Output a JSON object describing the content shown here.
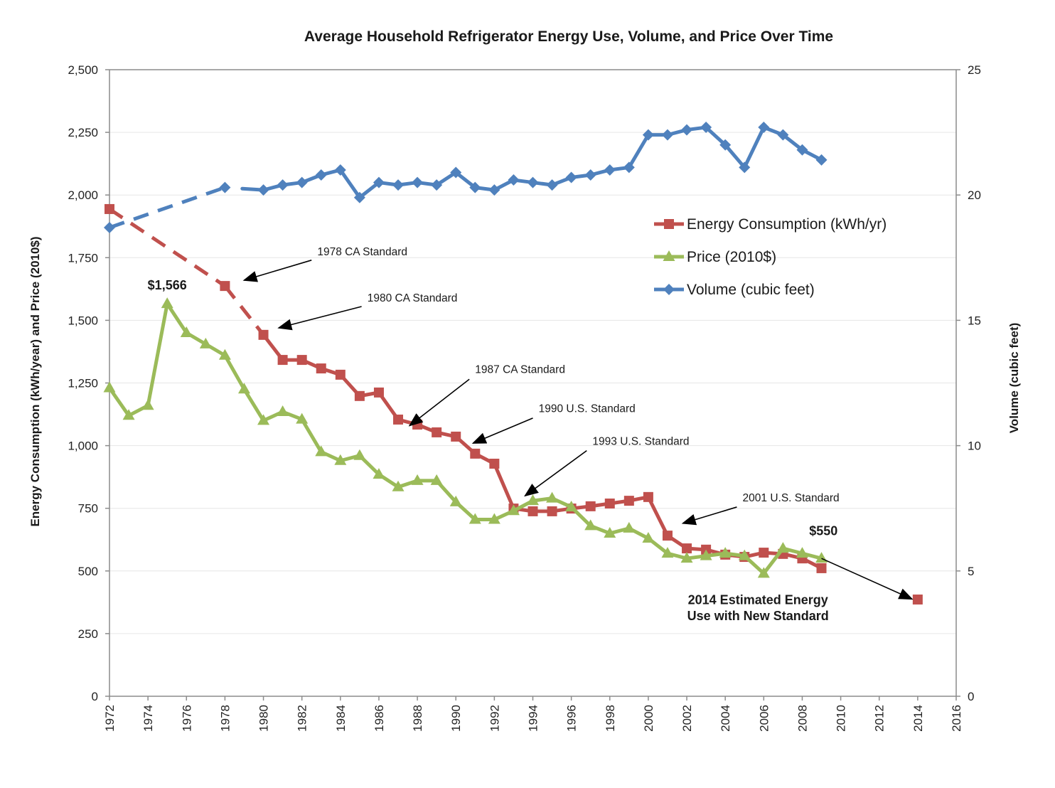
{
  "chart_data": {
    "type": "line",
    "title": "Average Household Refrigerator Energy Use, Volume, and Price Over Time",
    "xlabel": "",
    "ylabel": "Energy Consumption (kWh/year) and Price (2010$)",
    "y2label": "Volume (cubic feet)",
    "xlim": [
      1972,
      2016
    ],
    "ylim": [
      0,
      2500
    ],
    "y2lim": [
      0,
      25
    ],
    "grid": true,
    "legend_position": "upper-right (inside plot)",
    "x_ticks": [
      "1972",
      "1974",
      "1976",
      "1978",
      "1980",
      "1982",
      "1984",
      "1986",
      "1988",
      "1990",
      "1992",
      "1994",
      "1996",
      "1998",
      "2000",
      "2002",
      "2004",
      "2006",
      "2008",
      "2010",
      "2012",
      "2014",
      "2016"
    ],
    "y_ticks": [
      "0",
      "250",
      "500",
      "750",
      "1,000",
      "1,250",
      "1,500",
      "1,750",
      "2,000",
      "2,250",
      "2,500"
    ],
    "y2_ticks": [
      "0",
      "5",
      "10",
      "15",
      "20",
      "25"
    ],
    "series": [
      {
        "name": "Energy Consumption (kWh/yr)",
        "axis": "left",
        "color": "#c0504d",
        "marker": "square",
        "dashed_until": 1980,
        "x": [
          1972,
          1978,
          1980,
          1981,
          1982,
          1983,
          1984,
          1985,
          1986,
          1987,
          1988,
          1989,
          1990,
          1991,
          1992,
          1993,
          1994,
          1995,
          1996,
          1997,
          1998,
          1999,
          2000,
          2001,
          2002,
          2003,
          2004,
          2005,
          2006,
          2007,
          2008,
          2009
        ],
        "values": [
          1944,
          1637,
          1442,
          1342,
          1342,
          1308,
          1283,
          1198,
          1212,
          1104,
          1084,
          1053,
          1036,
          968,
          928,
          749,
          738,
          738,
          749,
          758,
          769,
          780,
          795,
          641,
          590,
          585,
          565,
          556,
          573,
          568,
          550,
          511
        ]
      },
      {
        "name": "Price (2010$)",
        "axis": "left",
        "color": "#9bbb59",
        "marker": "triangle",
        "x": [
          1972,
          1973,
          1974,
          1975,
          1976,
          1977,
          1978,
          1979,
          1980,
          1981,
          1982,
          1983,
          1984,
          1985,
          1986,
          1987,
          1988,
          1989,
          1990,
          1991,
          1992,
          1993,
          1994,
          1995,
          1996,
          1997,
          1998,
          1999,
          2000,
          2001,
          2002,
          2003,
          2004,
          2005,
          2006,
          2007,
          2008,
          2009
        ],
        "values": [
          1230,
          1120,
          1160,
          1566,
          1450,
          1405,
          1360,
          1225,
          1100,
          1135,
          1105,
          975,
          940,
          960,
          885,
          835,
          860,
          860,
          775,
          705,
          705,
          740,
          780,
          790,
          755,
          680,
          650,
          670,
          630,
          570,
          550,
          560,
          570,
          560,
          490,
          590,
          570,
          550
        ]
      },
      {
        "name": "Volume (cubic feet)",
        "axis": "right",
        "color": "#4f81bd",
        "marker": "diamond",
        "dashed_until": 1978,
        "gap_after": 1978,
        "x": [
          1972,
          1978,
          1980,
          1981,
          1982,
          1983,
          1984,
          1985,
          1986,
          1987,
          1988,
          1989,
          1990,
          1991,
          1992,
          1993,
          1994,
          1995,
          1996,
          1997,
          1998,
          1999,
          2000,
          2001,
          2002,
          2003,
          2004,
          2005,
          2006,
          2007,
          2008,
          2009
        ],
        "values": [
          18.7,
          20.3,
          20.2,
          20.4,
          20.5,
          20.8,
          21.0,
          19.9,
          20.5,
          20.4,
          20.5,
          20.4,
          20.9,
          20.3,
          20.2,
          20.6,
          20.5,
          20.4,
          20.7,
          20.8,
          21.0,
          21.1,
          22.4,
          22.4,
          22.6,
          22.7,
          22.0,
          21.1,
          22.7,
          22.4,
          21.8,
          21.4
        ]
      }
    ],
    "extra_points": [
      {
        "name": "2014 Estimated Energy Use with New Standard",
        "x": 2014,
        "value": 386,
        "axis": "left",
        "color": "#c0504d",
        "marker": "square"
      }
    ],
    "annotations": [
      {
        "id": "std1978",
        "text": "1978 CA Standard",
        "text_x": 1982.8,
        "text_y": 1760,
        "arrow_from": [
          1982.5,
          1740
        ],
        "arrow_to": [
          1979.0,
          1660
        ]
      },
      {
        "id": "std1980",
        "text": "1980 CA Standard",
        "text_x": 1985.4,
        "text_y": 1575,
        "arrow_from": [
          1985.1,
          1555
        ],
        "arrow_to": [
          1980.8,
          1470
        ]
      },
      {
        "id": "std1987",
        "text": "1987 CA Standard",
        "text_x": 1991.0,
        "text_y": 1290,
        "arrow_from": [
          1990.7,
          1265
        ],
        "arrow_to": [
          1987.6,
          1080
        ]
      },
      {
        "id": "std1990",
        "text": "1990 U.S. Standard",
        "text_x": 1994.3,
        "text_y": 1133,
        "arrow_from": [
          1994.0,
          1110
        ],
        "arrow_to": [
          1990.9,
          1010
        ]
      },
      {
        "id": "std1993",
        "text": "1993 U.S. Standard",
        "text_x": 1997.1,
        "text_y": 1003,
        "arrow_from": [
          1996.8,
          980
        ],
        "arrow_to": [
          1993.6,
          800
        ]
      },
      {
        "id": "std2001",
        "text": "2001 U.S. Standard",
        "text_x": 2004.9,
        "text_y": 778,
        "arrow_from": [
          2004.6,
          755
        ],
        "arrow_to": [
          2001.8,
          690
        ]
      },
      {
        "id": "est2014",
        "text": "",
        "arrow_from": [
          2009.0,
          550
        ],
        "arrow_to": [
          2013.7,
          388
        ]
      }
    ],
    "callouts": [
      {
        "id": "peak-price",
        "text": "$1,566",
        "x": 1975.0,
        "y": 1640
      },
      {
        "id": "end-price",
        "text": "$550",
        "x": 2009.1,
        "y": 660
      },
      {
        "id": "est-line1",
        "text": "2014 Estimated Energy",
        "x": 2005.7,
        "y": 385
      },
      {
        "id": "est-line2",
        "text": "Use with New Standard",
        "x": 2005.7,
        "y": 320
      }
    ]
  }
}
